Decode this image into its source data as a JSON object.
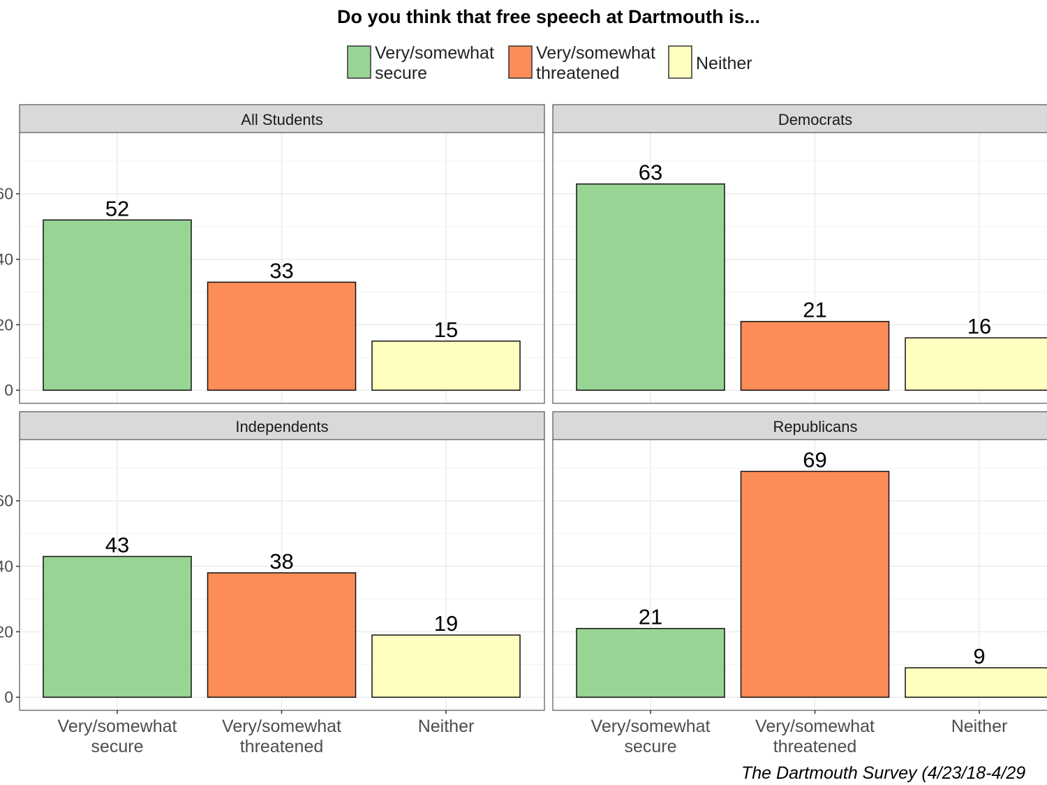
{
  "chart_data": {
    "type": "bar",
    "title": "Do you think that free speech at Dartmouth is...",
    "caption": "The Dartmouth Survey (4/23/18-4/29",
    "categories": [
      "Very/somewhat secure",
      "Very/somewhat threatened",
      "Neither"
    ],
    "category_lines": [
      [
        "Very/somewhat",
        "secure"
      ],
      [
        "Very/somewhat",
        "threatened"
      ],
      [
        "Neither"
      ]
    ],
    "legend": {
      "placement": "top",
      "entries": [
        {
          "lines": [
            "Very/somewhat",
            "secure"
          ],
          "color": "#98d594"
        },
        {
          "lines": [
            "Very/somewhat",
            "threatened"
          ],
          "color": "#fc8d59"
        },
        {
          "lines": [
            "Neither"
          ],
          "color": "#ffffbf"
        }
      ]
    },
    "colors": [
      "#98d594",
      "#fc8d59",
      "#ffffbf"
    ],
    "ylim": [
      -4,
      78.7
    ],
    "y_ticks": [
      0,
      20,
      40,
      60
    ],
    "y_tick_labels": [
      "0",
      "20",
      "40",
      "60"
    ],
    "grid": true,
    "panels": [
      {
        "title": "All Students",
        "values": [
          52,
          33,
          15
        ]
      },
      {
        "title": "Democrats",
        "values": [
          63,
          21,
          16
        ]
      },
      {
        "title": "Independents",
        "values": [
          43,
          38,
          19
        ]
      },
      {
        "title": "Republicans",
        "values": [
          21,
          69,
          9
        ]
      }
    ]
  }
}
